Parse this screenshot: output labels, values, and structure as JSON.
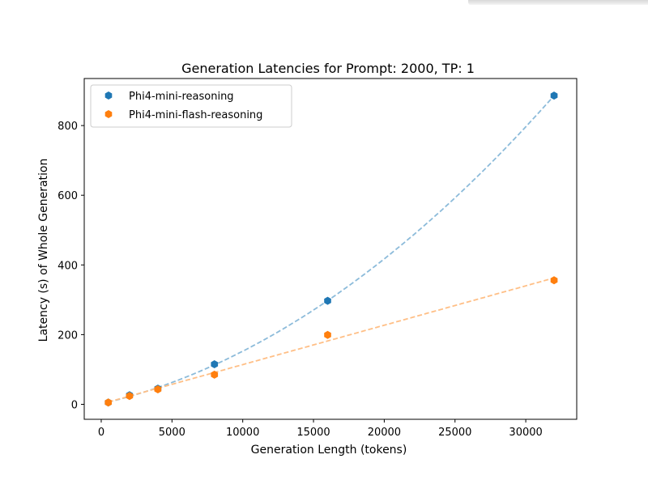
{
  "chart_data": {
    "type": "scatter",
    "title": "Generation Latencies for Prompt: 2000, TP: 1",
    "xlabel": "Generation Length (tokens)",
    "ylabel": "Latency (s) of Whole Generation",
    "xlim": [
      -1200,
      33600
    ],
    "ylim": [
      -43,
      935
    ],
    "xticks": [
      0,
      5000,
      10000,
      15000,
      20000,
      25000,
      30000
    ],
    "yticks": [
      0,
      200,
      400,
      600,
      800
    ],
    "grid": false,
    "legend_position": "top-left",
    "series": [
      {
        "name": "Phi4-mini-reasoning",
        "color": "#1f77b4",
        "fit_color": "#8cbbda",
        "fit_type": "quadratic",
        "x": [
          500,
          2000,
          4000,
          8000,
          16000,
          32000
        ],
        "y": [
          5,
          26,
          45,
          115,
          297,
          886
        ]
      },
      {
        "name": "Phi4-mini-flash-reasoning",
        "color": "#ff7f0e",
        "fit_color": "#ffbf86",
        "fit_type": "linear",
        "x": [
          500,
          2000,
          4000,
          8000,
          16000,
          32000
        ],
        "y": [
          5,
          24,
          43,
          85,
          199,
          356
        ]
      }
    ]
  }
}
